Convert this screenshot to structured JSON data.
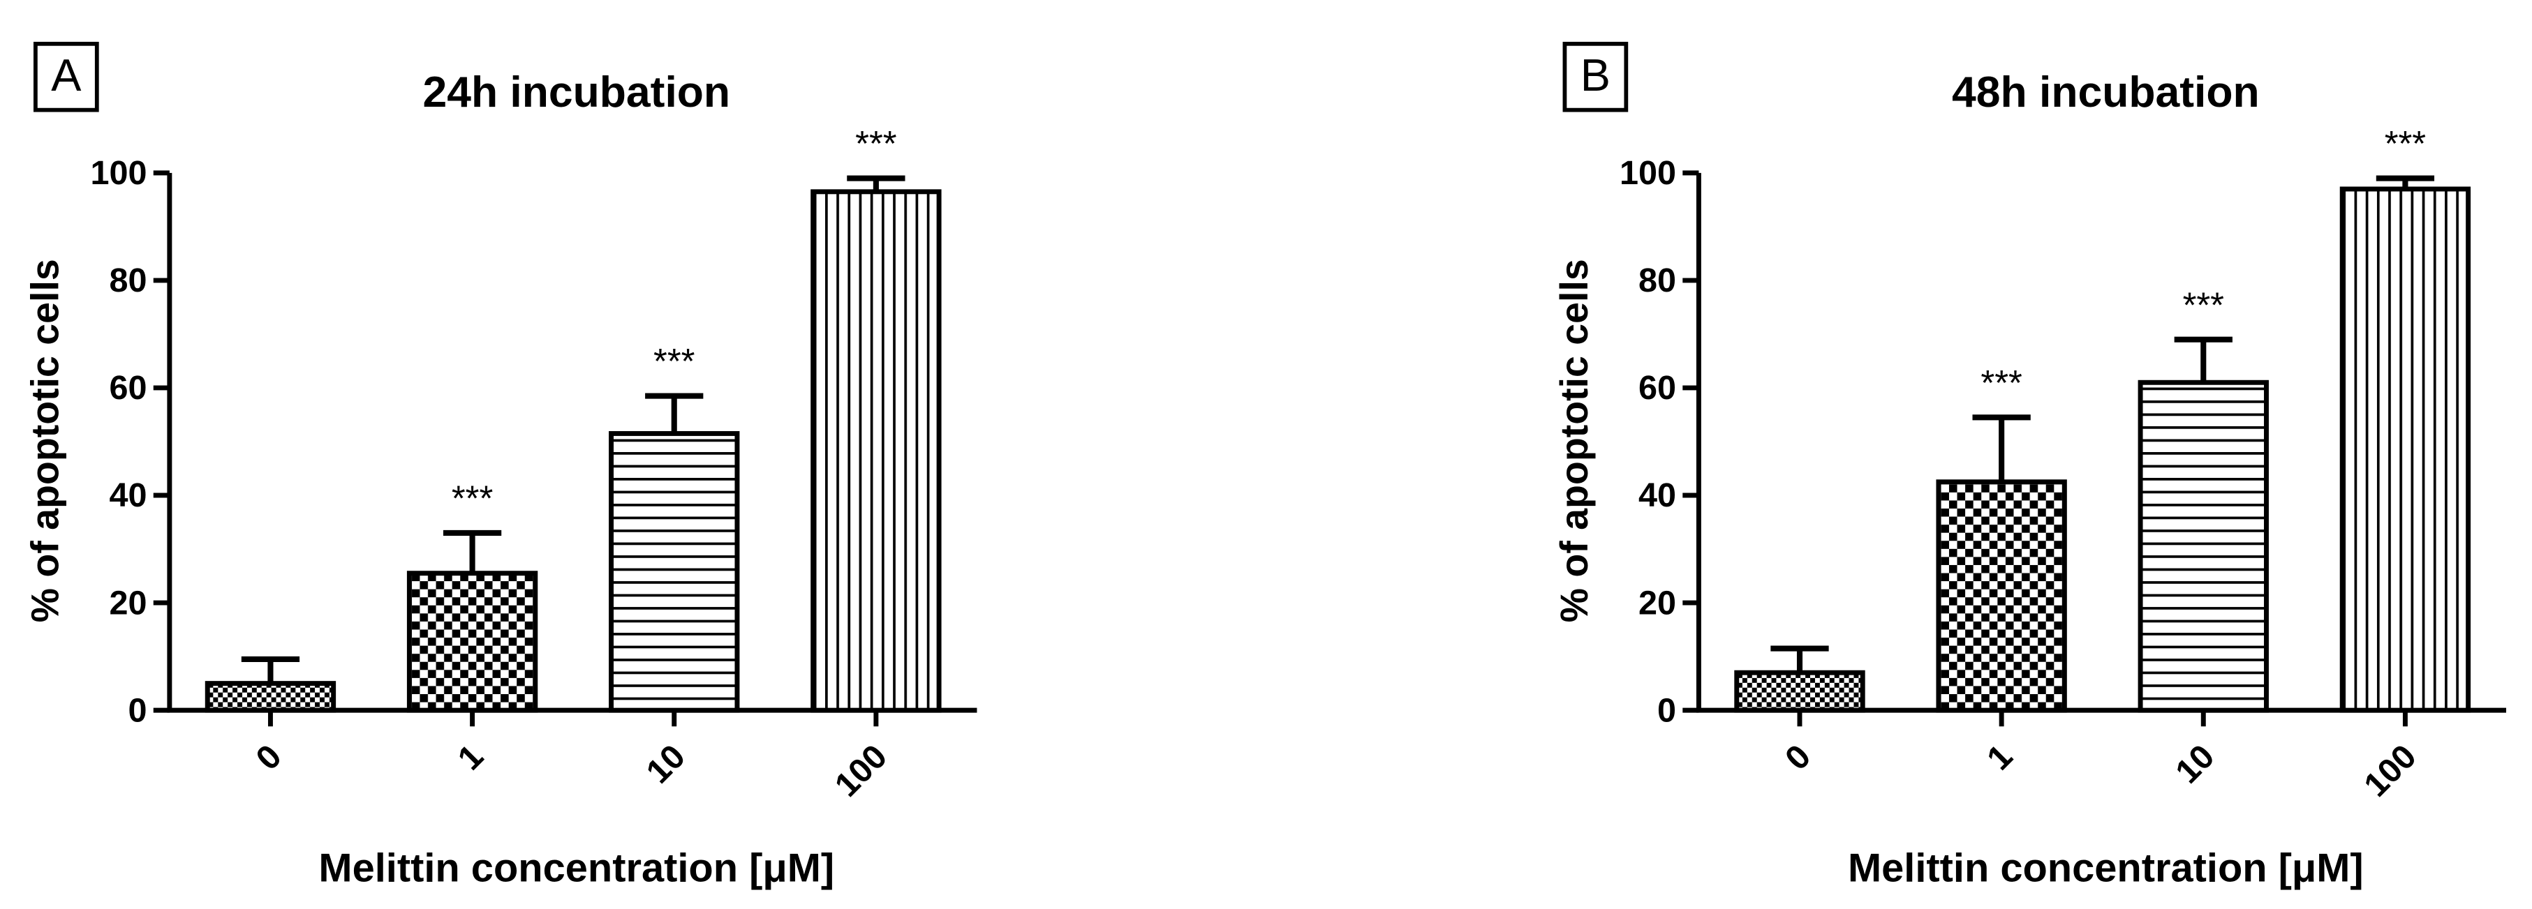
{
  "chart_data": [
    {
      "type": "bar",
      "panel_label": "A",
      "title": "24h incubation",
      "x_label": "Melittin concentration [μM]",
      "y_label": "% of apoptotic cells",
      "categories": [
        "0",
        "1",
        "10",
        "100"
      ],
      "values": [
        5,
        25.5,
        51.5,
        96.5
      ],
      "errors": [
        4.5,
        7.5,
        7,
        2.5
      ],
      "annotations": [
        null,
        "***",
        "***",
        "***"
      ],
      "patterns": [
        "fine-checker",
        "checker",
        "horizontal",
        "vertical"
      ],
      "color": "#000000",
      "ylim": [
        0,
        100
      ],
      "yticks": [
        0,
        20,
        40,
        60,
        80,
        100
      ]
    },
    {
      "type": "bar",
      "panel_label": "B",
      "title": "48h incubation",
      "x_label": "Melittin concentration [μM]",
      "y_label": "% of apoptotic cells",
      "categories": [
        "0",
        "1",
        "10",
        "100"
      ],
      "values": [
        7,
        42.5,
        61,
        97
      ],
      "errors": [
        4.5,
        12,
        8,
        2
      ],
      "annotations": [
        null,
        "***",
        "***",
        "***"
      ],
      "patterns": [
        "fine-checker",
        "checker",
        "horizontal",
        "vertical"
      ],
      "color": "#000000",
      "ylim": [
        0,
        100
      ],
      "yticks": [
        0,
        20,
        40,
        60,
        80,
        100
      ]
    }
  ]
}
